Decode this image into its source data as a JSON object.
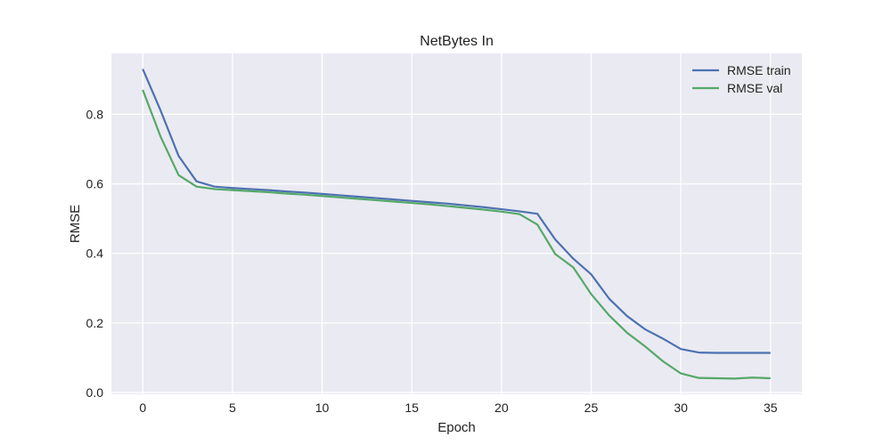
{
  "chart_data": {
    "type": "line",
    "title": "NetBytes In",
    "xlabel": "Epoch",
    "ylabel": "RMSE",
    "xlim": [
      -1.75,
      36.75
    ],
    "ylim": [
      -0.005,
      0.975
    ],
    "x_ticks": [
      0,
      5,
      10,
      15,
      20,
      25,
      30,
      35
    ],
    "y_ticks": [
      0.0,
      0.2,
      0.4,
      0.6,
      0.8
    ],
    "y_tick_labels": [
      "0.0",
      "0.2",
      "0.4",
      "0.6",
      "0.8"
    ],
    "grid": true,
    "legend_position": "top-right",
    "background_color": "#eaeaf2",
    "grid_color": "#ffffff",
    "x": [
      0,
      1,
      2,
      3,
      4,
      5,
      6,
      7,
      8,
      9,
      10,
      11,
      12,
      13,
      14,
      15,
      16,
      17,
      18,
      19,
      20,
      21,
      22,
      23,
      24,
      25,
      26,
      27,
      28,
      29,
      30,
      31,
      32,
      33,
      34,
      35
    ],
    "series": [
      {
        "name": "RMSE train",
        "color": "#4c72b0",
        "values": [
          0.93,
          0.81,
          0.68,
          0.607,
          0.592,
          0.588,
          0.585,
          0.582,
          0.578,
          0.575,
          0.571,
          0.567,
          0.563,
          0.559,
          0.555,
          0.551,
          0.547,
          0.543,
          0.538,
          0.533,
          0.527,
          0.521,
          0.514,
          0.44,
          0.385,
          0.34,
          0.27,
          0.22,
          0.182,
          0.155,
          0.125,
          0.115,
          0.114,
          0.114,
          0.114,
          0.114
        ]
      },
      {
        "name": "RMSE val",
        "color": "#55a868",
        "values": [
          0.87,
          0.735,
          0.625,
          0.592,
          0.585,
          0.582,
          0.579,
          0.576,
          0.572,
          0.569,
          0.565,
          0.561,
          0.557,
          0.553,
          0.549,
          0.545,
          0.541,
          0.536,
          0.531,
          0.526,
          0.52,
          0.513,
          0.483,
          0.398,
          0.36,
          0.283,
          0.222,
          0.172,
          0.133,
          0.09,
          0.055,
          0.042,
          0.041,
          0.04,
          0.043,
          0.041
        ]
      }
    ]
  }
}
